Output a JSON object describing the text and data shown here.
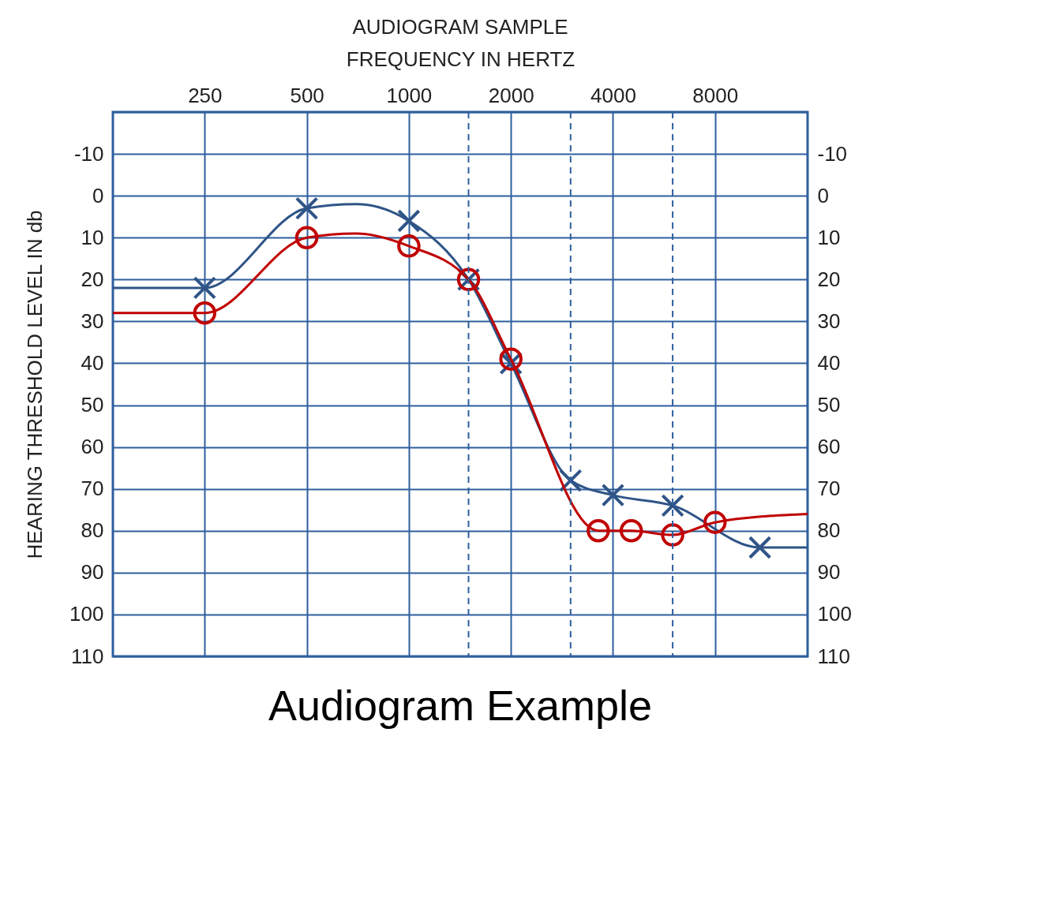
{
  "chart_data": {
    "type": "line",
    "title": "AUDIOGRAM SAMPLE",
    "xlabel": "FREQUENCY IN HERTZ",
    "ylabel": "HEARING THRESHOLD LEVEL IN db",
    "annotations": [
      "Audiogram Example"
    ],
    "log": "x",
    "grid": true,
    "xlim": [
      134,
      15000
    ],
    "xticks": [
      250,
      500,
      1000,
      2000,
      4000,
      8000
    ],
    "ylim": [
      110,
      -20
    ],
    "yticks": [
      {
        "value": -20,
        "label": null
      },
      -10,
      0,
      10,
      20,
      30,
      40,
      50,
      60,
      70,
      80,
      90,
      100,
      110
    ],
    "y2lim": [
      110,
      -20
    ],
    "y2ticks": [
      -10,
      0,
      10,
      20,
      30,
      40,
      50,
      60,
      70,
      80,
      90,
      100,
      110
    ],
    "ref_lines": [
      {
        "axis": "x",
        "value": 1500,
        "line_style": "dashed",
        "color": "#2e5f9e"
      },
      {
        "axis": "x",
        "value": 3000,
        "line_style": "dashed",
        "color": "#2e5f9e"
      },
      {
        "axis": "x",
        "value": 6000,
        "line_style": "dashed",
        "color": "#2e5f9e"
      }
    ],
    "series": [
      {
        "color": "#2f5487",
        "x": [
          134,
          190,
          250,
          500,
          700,
          1000,
          1500,
          2000,
          3000,
          4000,
          6000,
          10850,
          15000
        ],
        "values": [
          22,
          22,
          22,
          3,
          2,
          6,
          20,
          40,
          68,
          71.5,
          74,
          84,
          84
        ]
      },
      {
        "type": "scatter",
        "marker": "cross",
        "color": "#2f5487",
        "x": [
          250,
          500,
          1000,
          1500,
          2000,
          3000,
          4000,
          6000,
          10850
        ],
        "values": [
          22,
          3,
          6,
          20,
          40,
          68,
          71.5,
          74,
          84
        ]
      },
      {
        "color": "#c00000",
        "x": [
          134,
          190,
          250,
          500,
          700,
          1000,
          1500,
          2000,
          3620,
          4530,
          6000,
          8000,
          15000
        ],
        "values": [
          28,
          28,
          28,
          10,
          9,
          12,
          20,
          39,
          80,
          80,
          81,
          78,
          76
        ]
      },
      {
        "type": "scatter",
        "marker": "circle",
        "color": "#c00000",
        "x": [
          250,
          500,
          1000,
          1500,
          2000,
          3620,
          4530,
          6000,
          8000
        ],
        "values": [
          28,
          10,
          12,
          20,
          39,
          80,
          80,
          81,
          78
        ]
      }
    ]
  }
}
